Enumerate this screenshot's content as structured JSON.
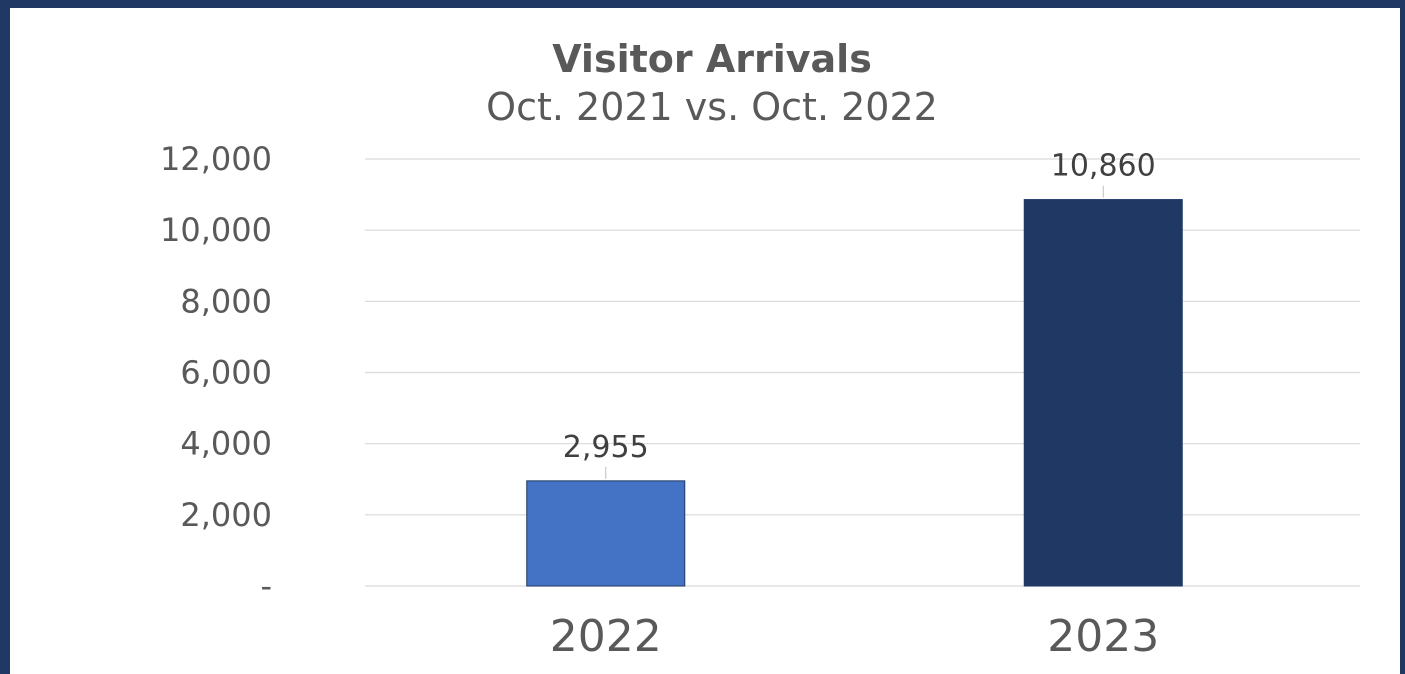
{
  "chart_data": {
    "type": "bar",
    "title": "Visitor Arrivals",
    "subtitle": "Oct. 2021 vs. Oct. 2022",
    "categories": [
      "2022",
      "2023"
    ],
    "values": [
      2955,
      10860
    ],
    "data_labels": [
      "2,955",
      "10,860"
    ],
    "colors": [
      "#4472c4",
      "#1f3864"
    ],
    "ylim": [
      0,
      12000
    ],
    "yticks": [
      0,
      2000,
      4000,
      6000,
      8000,
      10000,
      12000
    ],
    "ytick_labels": [
      "-",
      "2,000",
      "4,000",
      "6,000",
      "8,000",
      "10,000",
      "12,000"
    ],
    "grid": true,
    "legend": "none"
  }
}
